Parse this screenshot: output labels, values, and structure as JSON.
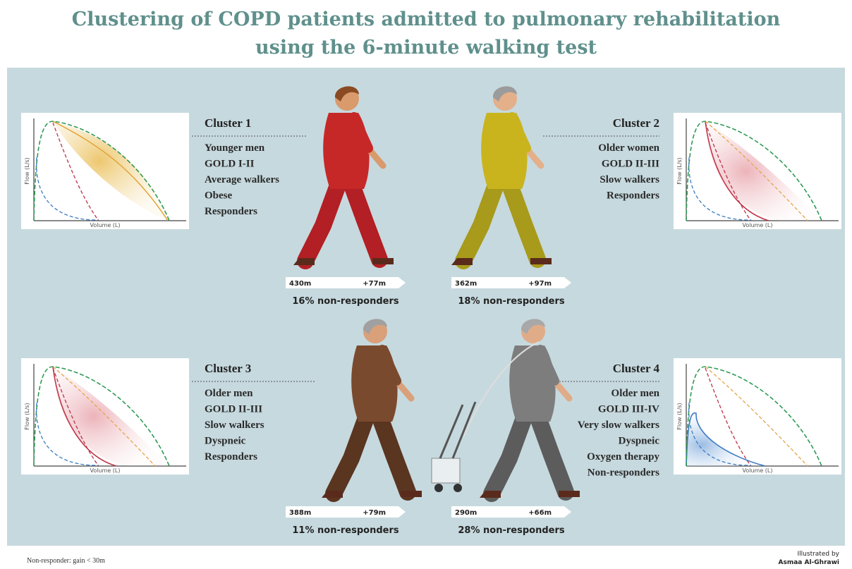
{
  "title": [
    "Clustering of COPD patients admitted to pulmonary rehabilitation",
    "using the 6-minute walking test"
  ],
  "clusters": [
    {
      "name": "Cluster 1",
      "traits": [
        "Younger men",
        "GOLD I-II",
        "Average walkers",
        "Obese",
        "Responders"
      ],
      "distance": "430m",
      "gain": "+77m",
      "non_responders": "16% non-responders",
      "plot": {
        "x_label": "Volume (L)",
        "y_label": "Flow (L/s)"
      }
    },
    {
      "name": "Cluster 2",
      "traits": [
        "Older women",
        "GOLD II-III",
        "Slow walkers",
        "Responders"
      ],
      "distance": "362m",
      "gain": "+97m",
      "non_responders": "18% non-responders",
      "plot": {
        "x_label": "Volume (L)",
        "y_label": "Flow (L/s)"
      }
    },
    {
      "name": "Cluster 3",
      "traits": [
        "Older men",
        "GOLD II-III",
        "Slow walkers",
        "Dyspneic",
        "Responders"
      ],
      "distance": "388m",
      "gain": "+79m",
      "non_responders": "11% non-responders",
      "plot": {
        "x_label": "Volume (L)",
        "y_label": "Flow (L/s)"
      }
    },
    {
      "name": "Cluster 4",
      "traits": [
        "Older men",
        "GOLD III-IV",
        "Very slow walkers",
        "Dyspneic",
        "Oxygen therapy",
        "Non-responders"
      ],
      "distance": "290m",
      "gain": "+66m",
      "non_responders": "28% non-responders",
      "plot": {
        "x_label": "Volume (L)",
        "y_label": "Flow (L/s)"
      }
    }
  ],
  "footnote": "Non-responder: gain < 30m",
  "credit": [
    "Illustrated by",
    "Asmaa Al-Ghrawi"
  ]
}
